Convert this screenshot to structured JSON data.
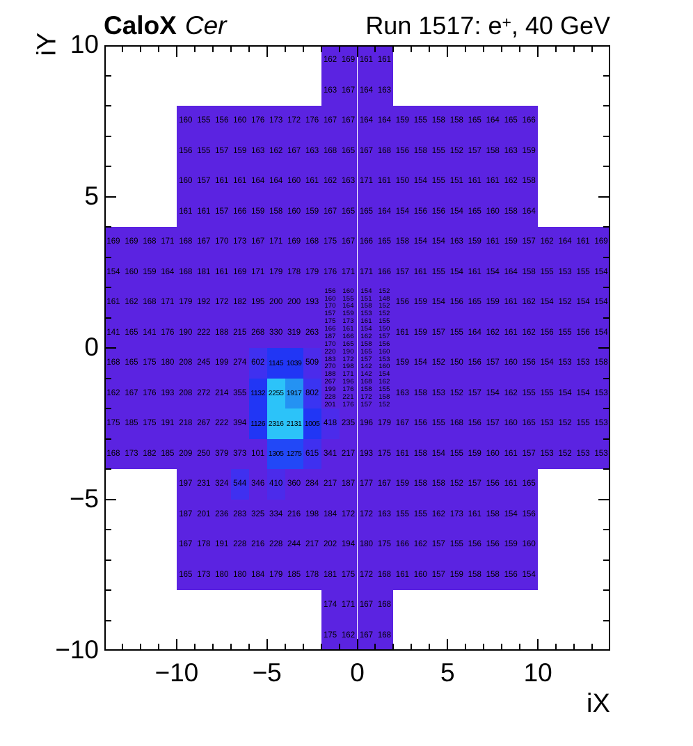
{
  "header": {
    "title_bold": "CaloX",
    "title_italic": "Cer",
    "run_prefix": "Run 1517: e",
    "run_sup": "+",
    "run_suffix": ", 40 GeV"
  },
  "axes": {
    "x": {
      "title": "iX",
      "min": -14,
      "max": 14,
      "ticks": [
        {
          "v": -10,
          "label": "−10"
        },
        {
          "v": -5,
          "label": "−5"
        },
        {
          "v": 0,
          "label": "0"
        },
        {
          "v": 5,
          "label": "5"
        },
        {
          "v": 10,
          "label": "10"
        }
      ]
    },
    "y": {
      "title": "iY",
      "min": -10,
      "max": 10,
      "ticks": [
        {
          "v": 10,
          "label": "10"
        },
        {
          "v": 5,
          "label": "5"
        },
        {
          "v": 0,
          "label": "0"
        },
        {
          "v": -5,
          "label": "−5"
        },
        {
          "v": -10,
          "label": "−10"
        }
      ]
    }
  },
  "chart_data": {
    "type": "heatmap",
    "title": "CaloX Cer — Run 1517: e+, 40 GeV",
    "xlabel": "iX",
    "ylabel": "iY",
    "xlim": [
      -14,
      14
    ],
    "ylim": [
      -10,
      10
    ],
    "grid": false,
    "legend": "none",
    "palette": [
      {
        "min": 2000,
        "color": "#2CC3F9"
      },
      {
        "min": 1500,
        "color": "#2492F3"
      },
      {
        "min": 1200,
        "color": "#2248F7"
      },
      {
        "min": 900,
        "color": "#2136F5"
      },
      {
        "min": 700,
        "color": "#3A34F2"
      },
      {
        "min": 520,
        "color": "#3F30F0"
      },
      {
        "min": 400,
        "color": "#4B2BEB"
      },
      {
        "min": 0,
        "color": "#5B23E1"
      }
    ],
    "segments": [
      {
        "iy": 10,
        "ix0": -2,
        "values": [
          162,
          169,
          161,
          161
        ]
      },
      {
        "iy": 9,
        "ix0": -2,
        "values": [
          163,
          167,
          164,
          163
        ]
      },
      {
        "iy": 8,
        "ix0": -10,
        "values": [
          160,
          155,
          156,
          160,
          176,
          173,
          172,
          176,
          167,
          167,
          164,
          164,
          159,
          155,
          158,
          158,
          165,
          164,
          165,
          166
        ]
      },
      {
        "iy": 7,
        "ix0": -10,
        "values": [
          156,
          155,
          157,
          159,
          163,
          162,
          167,
          163,
          168,
          165,
          167,
          168,
          156,
          158,
          155,
          152,
          157,
          158,
          163,
          159
        ]
      },
      {
        "iy": 6,
        "ix0": -10,
        "values": [
          160,
          157,
          161,
          161,
          164,
          164,
          160,
          161,
          162,
          163,
          171,
          161,
          150,
          154,
          155,
          151,
          161,
          161,
          162,
          158
        ]
      },
      {
        "iy": 5,
        "ix0": -10,
        "values": [
          161,
          161,
          157,
          166,
          159,
          158,
          160,
          159,
          167,
          165,
          165,
          164,
          154,
          156,
          156,
          154,
          165,
          160,
          158,
          164
        ]
      },
      {
        "iy": 4,
        "ix0": -14,
        "values": [
          169,
          169,
          168,
          171,
          168,
          167,
          170,
          173,
          167,
          171,
          169,
          168,
          175,
          167,
          166,
          165,
          158,
          154,
          154,
          163,
          159,
          161,
          159,
          157,
          162,
          164,
          161,
          169
        ]
      },
      {
        "iy": 3,
        "ix0": -14,
        "values": [
          154,
          160,
          159,
          164,
          168,
          181,
          161,
          169,
          171,
          179,
          178,
          179,
          176,
          171,
          171,
          166,
          157,
          161,
          155,
          154,
          161,
          154,
          164,
          158,
          155,
          153,
          155,
          154
        ]
      },
      {
        "iy": 2,
        "ix0": -14,
        "values": [
          161,
          162,
          168,
          171,
          179,
          192,
          172,
          182,
          195,
          200,
          200,
          193
        ]
      },
      {
        "iy": 2,
        "ix0": 2,
        "values": [
          156,
          159,
          154,
          156,
          165,
          159,
          161,
          162,
          154,
          152,
          154,
          154
        ]
      },
      {
        "iy": 1,
        "ix0": -14,
        "values": [
          141,
          165,
          141,
          176,
          190,
          222,
          188,
          215,
          268,
          330,
          319,
          263
        ]
      },
      {
        "iy": 1,
        "ix0": 2,
        "values": [
          161,
          159,
          157,
          155,
          164,
          162,
          161,
          162,
          156,
          155,
          156,
          154
        ]
      },
      {
        "iy": 0,
        "ix0": -14,
        "values": [
          168,
          165,
          175,
          180,
          208,
          245,
          199,
          274,
          602,
          1145,
          1039,
          509
        ]
      },
      {
        "iy": 0,
        "ix0": 2,
        "values": [
          159,
          154,
          152,
          150,
          156,
          157,
          160,
          156,
          154,
          153,
          153,
          158
        ]
      },
      {
        "iy": -1,
        "ix0": -14,
        "values": [
          162,
          167,
          176,
          193,
          208,
          272,
          214,
          355,
          1132,
          2255,
          1917,
          802
        ]
      },
      {
        "iy": -1,
        "ix0": 2,
        "values": [
          163,
          158,
          153,
          152,
          157,
          154,
          162,
          155,
          155,
          154,
          154,
          153
        ]
      },
      {
        "iy": -2,
        "ix0": -14,
        "values": [
          175,
          185,
          175,
          191,
          218,
          267,
          222,
          394,
          1126,
          2316,
          2131,
          1005,
          418,
          235,
          196,
          179,
          167,
          156,
          155,
          168,
          156,
          157,
          160,
          165,
          153,
          152,
          155,
          153
        ]
      },
      {
        "iy": -3,
        "ix0": -14,
        "values": [
          168,
          173,
          182,
          185,
          209,
          250,
          379,
          373,
          101,
          1305,
          1275,
          615,
          341,
          217,
          193,
          175,
          161,
          158,
          154,
          155,
          159,
          160,
          161,
          157,
          153,
          152,
          153,
          153
        ]
      },
      {
        "iy": -4,
        "ix0": -10,
        "values": [
          197,
          231,
          324,
          544,
          346,
          410,
          360,
          284,
          217,
          187,
          177,
          167,
          159,
          158,
          158,
          152,
          157,
          156,
          161,
          165
        ]
      },
      {
        "iy": -5,
        "ix0": -10,
        "values": [
          187,
          201,
          236,
          283,
          325,
          334,
          216,
          198,
          184,
          172,
          172,
          163,
          155,
          155,
          162,
          173,
          161,
          158,
          154,
          156
        ]
      },
      {
        "iy": -6,
        "ix0": -10,
        "values": [
          167,
          178,
          191,
          228,
          216,
          228,
          244,
          217,
          202,
          194,
          180,
          175,
          166,
          162,
          157,
          155,
          156,
          156,
          159,
          160
        ]
      },
      {
        "iy": -7,
        "ix0": -10,
        "values": [
          165,
          173,
          180,
          180,
          184,
          179,
          185,
          178,
          181,
          175,
          172,
          168,
          161,
          160,
          157,
          159,
          158,
          158,
          156,
          154
        ]
      },
      {
        "iy": -8,
        "ix0": -2,
        "values": [
          174,
          171,
          167,
          168
        ]
      },
      {
        "iy": -9,
        "ix0": -2,
        "values": [
          175,
          162,
          167,
          168
        ]
      }
    ],
    "fine_block": {
      "ix0": -2,
      "iy_top": 2,
      "cols": 4,
      "row_height_units": 0.25,
      "rows": [
        [
          156,
          160,
          154,
          152
        ],
        [
          160,
          155,
          151,
          148
        ],
        [
          170,
          164,
          158,
          152
        ],
        [
          157,
          159,
          153,
          152
        ],
        [
          175,
          173,
          161,
          155
        ],
        [
          166,
          161,
          154,
          150
        ],
        [
          187,
          166,
          162,
          157
        ],
        [
          170,
          165,
          158,
          156
        ],
        [
          220,
          190,
          165,
          160
        ],
        [
          183,
          172,
          157,
          153
        ],
        [
          270,
          198,
          142,
          160
        ],
        [
          188,
          171,
          142,
          154
        ],
        [
          267,
          196,
          168,
          162
        ],
        [
          199,
          176,
          158,
          155
        ],
        [
          228,
          221,
          172,
          158
        ],
        [
          201,
          176,
          157,
          152
        ]
      ]
    }
  }
}
